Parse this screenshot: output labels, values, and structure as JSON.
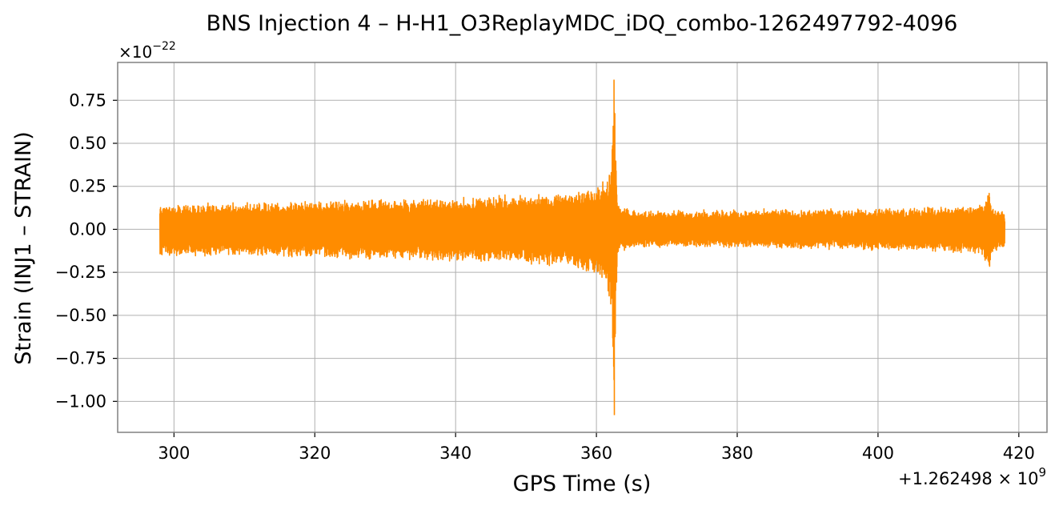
{
  "chart_data": {
    "type": "line",
    "title": "BNS Injection 4 – H-H1_O3ReplayMDC_iDQ_combo-1262497792-4096",
    "xlabel": "GPS Time (s)",
    "ylabel": "Strain (INJ1 – STRAIN)",
    "x_offset_label": "+1.262498 × 10",
    "x_offset_exponent": "9",
    "y_scale_label": "×10",
    "y_scale_exponent": "−22",
    "xlim": [
      292,
      424
    ],
    "ylim": [
      -1.18,
      0.97
    ],
    "xticks": [
      300,
      320,
      340,
      360,
      380,
      400,
      420
    ],
    "xtick_labels": [
      "300",
      "320",
      "340",
      "360",
      "380",
      "400",
      "420"
    ],
    "yticks": [
      0.75,
      0.5,
      0.25,
      0.0,
      -0.25,
      -0.5,
      -0.75,
      -1.0
    ],
    "ytick_labels": [
      "0.75",
      "0.50",
      "0.25",
      "0.00",
      "−0.25",
      "−0.50",
      "−0.75",
      "−1.00"
    ],
    "grid": true,
    "series": [
      {
        "color": "#ff8c00",
        "x_range": [
          298,
          418
        ],
        "envelope_x": [
          298,
          310,
          320,
          330,
          340,
          350,
          355,
          358,
          360,
          361,
          362,
          362.5,
          362.7,
          363,
          365,
          380,
          395,
          405,
          410,
          415,
          415.8,
          416.2,
          418
        ],
        "envelope_upper": [
          0.15,
          0.16,
          0.17,
          0.18,
          0.19,
          0.21,
          0.22,
          0.24,
          0.26,
          0.3,
          0.38,
          0.87,
          0.6,
          0.15,
          0.11,
          0.12,
          0.12,
          0.13,
          0.14,
          0.16,
          0.23,
          0.14,
          0.1
        ],
        "envelope_lower": [
          -0.16,
          -0.16,
          -0.17,
          -0.18,
          -0.19,
          -0.21,
          -0.22,
          -0.25,
          -0.28,
          -0.32,
          -0.45,
          -1.08,
          -0.7,
          -0.15,
          -0.11,
          -0.11,
          -0.12,
          -0.13,
          -0.14,
          -0.16,
          -0.31,
          -0.14,
          -0.1
        ]
      }
    ]
  }
}
